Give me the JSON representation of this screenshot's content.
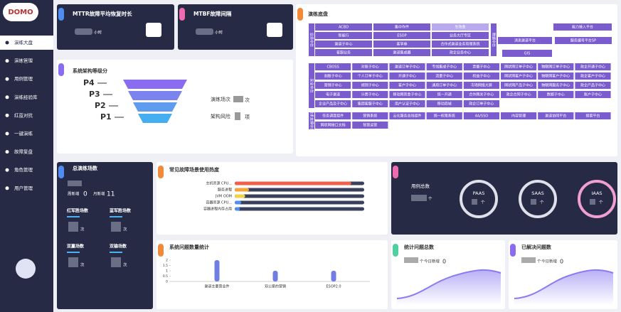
{
  "sidebar": {
    "logo": "DOMO",
    "menu": [
      "演练大盘",
      "演练管理",
      "用例管理",
      "演练经验库",
      "红蓝对抗",
      "一键演练",
      "故障复盘",
      "角色管理",
      "用户管理"
    ]
  },
  "mttr": {
    "title": "MTTR故障平均恢复时长",
    "unit": "小时"
  },
  "mtbf": {
    "title": "MTBF故障间隔",
    "unit": "小时"
  },
  "architecture": {
    "title": "系统架构等级分",
    "levels": [
      "P4",
      "P3",
      "P2",
      "P1"
    ],
    "drill_label": "演练场次",
    "drill_unit": "次",
    "risk_label": "架构风险",
    "risk_unit": "项"
  },
  "platform": {
    "title": "演练底盘",
    "groups": [
      {
        "label": "业务中台",
        "rows": [
          [
            "ACBD",
            "集中作件",
            "生效金"
          ],
          [
            "智能行",
            "ESOP",
            "业务大厅专区"
          ],
          [
            "渠道子中心",
            "客享券",
            "合作式渠道业务管理系统"
          ],
          [
            "客服业务",
            "渠道集成器",
            "政企业务中心"
          ]
        ]
      },
      {
        "label": "安全中台",
        "rows": [
          [
            "CBOSS",
            "对账子中心",
            "渠道订单子中心",
            "专线集成子中心",
            "票据子中心",
            "网状网订单子中心",
            "物联网订单子中心",
            "政企开通子中心"
          ],
          [
            "割账子中心",
            "个人订单子中心",
            "开通子中心",
            "流量子中心",
            "权益子中心",
            "网状网客户子中心",
            "物联网客户子中心",
            "政企客户子中心"
          ],
          [
            "营销子中心",
            "规则子中心",
            "客户子中心",
            "通用订单子中心",
            "市场网络大屏",
            "网状网产品子中心",
            "物联网服务子中心",
            "政企产品子中心"
          ],
          [
            "电子渠道",
            "计费子中心",
            "移动网资金子中心",
            "统一开通",
            "合作网关子中心",
            "政企合同子中心",
            "数据子中心",
            "账户子中心"
          ],
          [
            "企业产品及子中心",
            "集团客服子中心",
            "用户认证子中心",
            "移动商城",
            "政企订单子中心"
          ]
        ]
      },
      {
        "label": "技术支撑中台",
        "rows": [
          [
            "任务调度组件",
            "营销系统",
            "云化服务总线组件",
            "统一权限系统",
            "4A/SSO",
            "内容管理",
            "渠道协同平台",
            "搜索平台"
          ],
          [
            "网状网接口文档",
            "智慧运营"
          ]
        ]
      }
    ],
    "side_label": "数据中台",
    "side_items": [
      "能力接入平台",
      "消息渠道平台",
      "服务编号平台SP",
      "GIS"
    ]
  },
  "totals": {
    "title": "总演练场数",
    "week_label": "周新增",
    "week_value": 0,
    "month_label": "月新增",
    "month_value": 11,
    "stats": [
      {
        "label": "红军胜场数",
        "unit": "次"
      },
      {
        "label": "蓝军胜场数",
        "unit": "次"
      },
      {
        "label": "双赢场数",
        "unit": "次"
      },
      {
        "label": "双输场数",
        "unit": "次"
      }
    ]
  },
  "heat_chart": {
    "type": "bar",
    "orientation": "horizontal",
    "title": "常见故障场景使用热度",
    "categories": [
      "主机资源 CPU...",
      "服务进程",
      "JVM OOM",
      "容器资源 CPU...",
      "容器进程内存占用"
    ],
    "values": [
      90,
      11,
      8,
      5,
      4
    ],
    "colors": [
      "#f0604a",
      "#f5a43a",
      "#f3d24a",
      "#4f8ef0",
      "#4f8ef0"
    ],
    "xlim": [
      0,
      100
    ]
  },
  "cases": {
    "title": "用例总数",
    "kinds": [
      "PAAS",
      "SAAS",
      "IAAS"
    ],
    "unit": "个"
  },
  "issue_chart": {
    "type": "bar",
    "title": "系统问题数量统计",
    "categories": [
      "渠道主要营业件",
      "双公案的营销",
      "ESOP2.0"
    ],
    "values": [
      2,
      1,
      1
    ],
    "ylim": [
      0,
      2
    ],
    "yticks": [
      0,
      0.5,
      1,
      1.5,
      2
    ],
    "color": "#6f7ee0"
  },
  "issue_total": {
    "title": "统计问题总数",
    "unit": "个",
    "today_label": "今日新增",
    "today_value": 0
  },
  "issue_solved": {
    "title": "已解决问题数",
    "unit": "个",
    "today_label": "今日新增",
    "today_value": 0
  }
}
